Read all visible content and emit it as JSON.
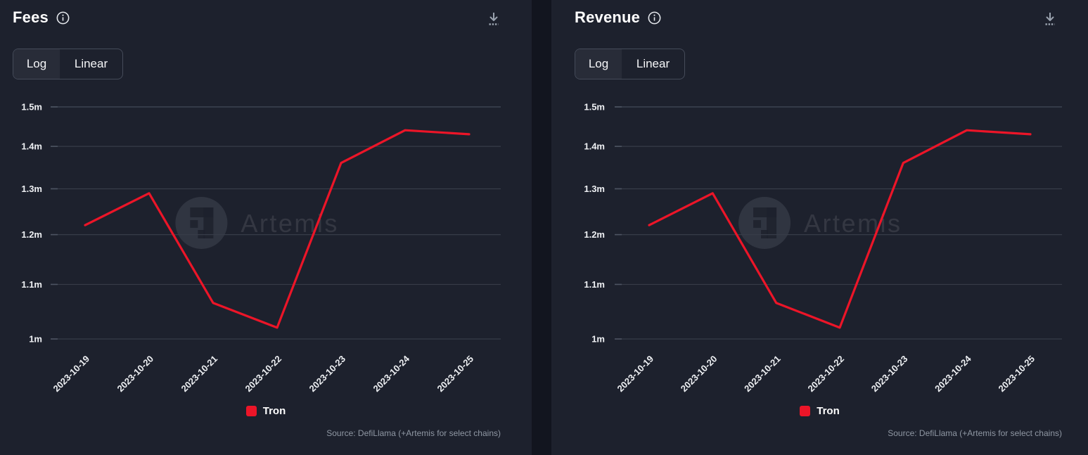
{
  "colors": {
    "page_bg": "#12151f",
    "panel_bg": "#1d212d",
    "grid": "#373c48",
    "grid_top": "#434a58",
    "text": "#eef0f3",
    "muted": "#8f97a3",
    "tron_red": "#ec1528",
    "toggle_selected_bg": "#282c38",
    "toggle_border": "#454b59",
    "watermark": "#3e434f"
  },
  "panels": [
    {
      "title": "Fees",
      "info_icon": "info-circle",
      "download_icon": "download-tray",
      "toggle": {
        "options": [
          "Log",
          "Linear"
        ],
        "selected": "Log"
      },
      "legend": {
        "label": "Tron",
        "color": "#ec1528"
      },
      "watermark_text": "Artemis",
      "source": "Source: DefiLlama (+Artemis for select chains)"
    },
    {
      "title": "Revenue",
      "info_icon": "info-circle",
      "download_icon": "download-tray",
      "toggle": {
        "options": [
          "Log",
          "Linear"
        ],
        "selected": "Log"
      },
      "legend": {
        "label": "Tron",
        "color": "#ec1528"
      },
      "watermark_text": "Artemis",
      "source": "Source: DefiLlama (+Artemis for select chains)"
    }
  ],
  "chart_data": [
    {
      "type": "line",
      "title": "Fees",
      "x": [
        "2023-10-19",
        "2023-10-20",
        "2023-10-21",
        "2023-10-22",
        "2023-10-23",
        "2023-10-24",
        "2023-10-25"
      ],
      "series": [
        {
          "name": "Tron",
          "color": "#ec1528",
          "values": [
            1220000,
            1290000,
            1065000,
            1020000,
            1360000,
            1440000,
            1430000
          ]
        }
      ],
      "yscale": "log",
      "ylim": [
        1000000,
        1500000
      ],
      "yticks": [
        {
          "value": 1500000,
          "label": "1.5m"
        },
        {
          "value": 1400000,
          "label": "1.4m"
        },
        {
          "value": 1300000,
          "label": "1.3m"
        },
        {
          "value": 1200000,
          "label": "1.2m"
        },
        {
          "value": 1100000,
          "label": "1.1m"
        },
        {
          "value": 1000000,
          "label": "1m"
        }
      ],
      "grid": true,
      "legend_position": "bottom"
    },
    {
      "type": "line",
      "title": "Revenue",
      "x": [
        "2023-10-19",
        "2023-10-20",
        "2023-10-21",
        "2023-10-22",
        "2023-10-23",
        "2023-10-24",
        "2023-10-25"
      ],
      "series": [
        {
          "name": "Tron",
          "color": "#ec1528",
          "values": [
            1220000,
            1290000,
            1065000,
            1020000,
            1360000,
            1440000,
            1430000
          ]
        }
      ],
      "yscale": "log",
      "ylim": [
        1000000,
        1500000
      ],
      "yticks": [
        {
          "value": 1500000,
          "label": "1.5m"
        },
        {
          "value": 1400000,
          "label": "1.4m"
        },
        {
          "value": 1300000,
          "label": "1.3m"
        },
        {
          "value": 1200000,
          "label": "1.2m"
        },
        {
          "value": 1100000,
          "label": "1.1m"
        },
        {
          "value": 1000000,
          "label": "1m"
        }
      ],
      "grid": true,
      "legend_position": "bottom"
    }
  ]
}
